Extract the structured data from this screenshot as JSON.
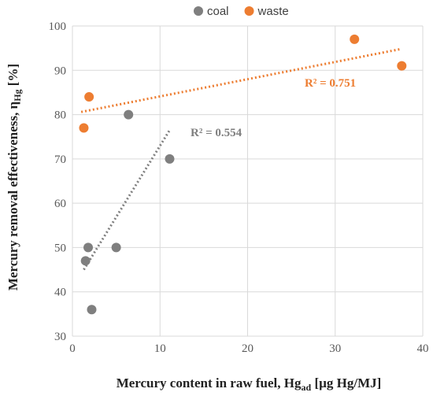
{
  "chart_data": {
    "type": "scatter",
    "xlabel": {
      "main": "Mercury content in raw fuel, Hg",
      "sub": "ad",
      "unit": " [µg Hg/MJ]"
    },
    "ylabel": {
      "main": "Mercury removal effectiveness, η",
      "sub": "Hg",
      "unit": " [%]"
    },
    "xlim": [
      0,
      40
    ],
    "ylim": [
      30,
      100
    ],
    "x_ticks": [
      0,
      10,
      20,
      30,
      40
    ],
    "y_ticks": [
      30,
      40,
      50,
      60,
      70,
      80,
      90,
      100
    ],
    "grid": true,
    "legend_position": "top-center",
    "series": [
      {
        "name": "coal",
        "color": "#7f7f7f",
        "points": [
          {
            "x": 1.5,
            "y": 47
          },
          {
            "x": 1.8,
            "y": 50
          },
          {
            "x": 2.2,
            "y": 36
          },
          {
            "x": 5.0,
            "y": 50
          },
          {
            "x": 6.4,
            "y": 80
          },
          {
            "x": 11.1,
            "y": 70
          }
        ],
        "trendline": {
          "x": [
            1.3,
            11.1
          ],
          "y": [
            45,
            76.5
          ]
        },
        "r2_label": "R² = 0.554"
      },
      {
        "name": "waste",
        "color": "#ed7d31",
        "points": [
          {
            "x": 1.3,
            "y": 77
          },
          {
            "x": 1.9,
            "y": 84
          },
          {
            "x": 32.2,
            "y": 97
          },
          {
            "x": 37.6,
            "y": 91
          }
        ],
        "trendline": {
          "x": [
            1.0,
            37.5
          ],
          "y": [
            80.6,
            94.8
          ]
        },
        "r2_label": "R² = 0.751"
      }
    ]
  }
}
